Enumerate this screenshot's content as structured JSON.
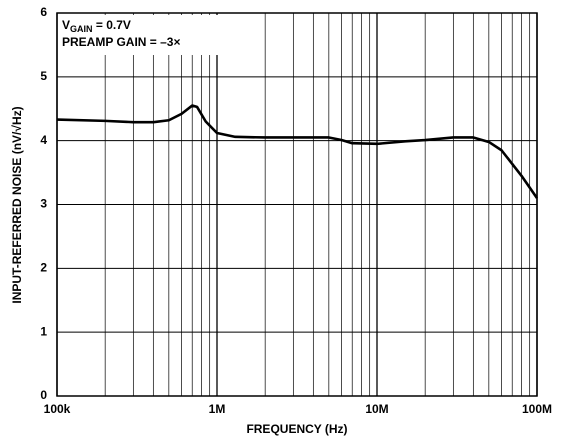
{
  "chart_data": {
    "type": "line",
    "xlabel": "FREQUENCY (Hz)",
    "ylabel": "INPUT-REFERRED NOISE (nV/√Hz)",
    "annotations": [
      {
        "main": "V",
        "sub": "GAIN",
        "rest": " = 0.7V"
      },
      {
        "main": "PREAMP GAIN = –3×"
      }
    ],
    "xscale": "log",
    "xlim": [
      100000,
      100000000
    ],
    "xticks": [
      {
        "value": 100000,
        "label": "100k"
      },
      {
        "value": 1000000,
        "label": "1M"
      },
      {
        "value": 10000000,
        "label": "10M"
      },
      {
        "value": 100000000,
        "label": "100M"
      }
    ],
    "xminorticks": [
      200000,
      300000,
      400000,
      500000,
      600000,
      700000,
      800000,
      900000,
      2000000,
      3000000,
      4000000,
      5000000,
      6000000,
      7000000,
      8000000,
      9000000,
      20000000,
      30000000,
      40000000,
      50000000,
      60000000,
      70000000,
      80000000,
      90000000
    ],
    "ylim": [
      0,
      6
    ],
    "yticks": [
      0,
      1,
      2,
      3,
      4,
      5,
      6
    ],
    "grid": true,
    "series": [
      {
        "color": "#000000",
        "x": [
          100000,
          200000,
          300000,
          400000,
          500000,
          600000,
          700000,
          750000,
          850000,
          1000000,
          1300000,
          2000000,
          5000000,
          6000000,
          7000000,
          10000000,
          15000000,
          20000000,
          30000000,
          40000000,
          50000000,
          60000000,
          80000000,
          100000000
        ],
        "values": [
          4.33,
          4.31,
          4.29,
          4.29,
          4.32,
          4.42,
          4.55,
          4.53,
          4.3,
          4.12,
          4.06,
          4.05,
          4.05,
          4.01,
          3.96,
          3.95,
          3.99,
          4.01,
          4.05,
          4.05,
          3.98,
          3.85,
          3.45,
          3.1
        ]
      }
    ]
  }
}
